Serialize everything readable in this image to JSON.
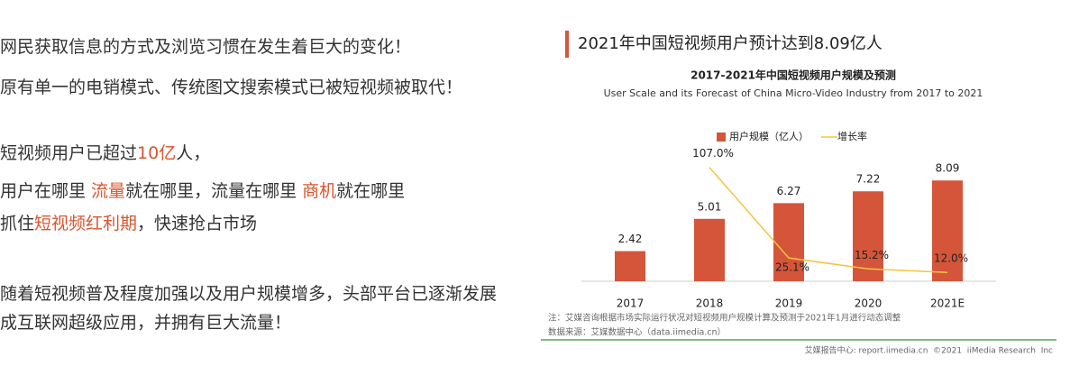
{
  "left_text": {
    "highlight_color": "#d9552f",
    "lines": [
      {
        "runs": [
          {
            "text": "网民获取信息的方式及浏览习惯在发生着巨大的变化！"
          }
        ]
      },
      {
        "runs": [
          {
            "text": "原有单一的电销模式、传统图文搜索模式已被短视频被取代！"
          }
        ]
      },
      {
        "runs": [
          {
            "text": "短视频用户已超过"
          },
          {
            "text": "10亿",
            "highlight": true
          },
          {
            "text": "人，"
          }
        ]
      },
      {
        "runs": [
          {
            "text": "用户在哪里 "
          },
          {
            "text": "流量",
            "highlight": true
          },
          {
            "text": "就在哪里，流量在哪里 "
          },
          {
            "text": "商机",
            "highlight": true
          },
          {
            "text": "就在哪里"
          }
        ]
      },
      {
        "runs": [
          {
            "text": "抓住"
          },
          {
            "text": "短视频红利期",
            "highlight": true
          },
          {
            "text": "，快速抢占市场"
          }
        ]
      },
      {
        "runs": [
          {
            "text": "随着短视频普及程度加强以及用户规模增多，头部平台已逐渐发展"
          }
        ]
      },
      {
        "runs": [
          {
            "text": "成互联网超级应用，并拥有巨大流量！"
          }
        ]
      }
    ]
  },
  "chart_data": {
    "type": "bar",
    "header": "2021年中国短视频用户预计达到8.09亿人",
    "title": "2017-2021年中国短视频用户规模及预测",
    "subtitle": "User Scale and its Forecast of China Micro-Video Industry from 2017 to 2021",
    "categories": [
      "2017",
      "2018",
      "2019",
      "2020",
      "2021E"
    ],
    "series": [
      {
        "name": "用户规模（亿人）",
        "type": "bar",
        "color": "#d4553a",
        "values": [
          2.42,
          5.01,
          6.27,
          7.22,
          8.09
        ]
      },
      {
        "name": "增长率",
        "type": "line",
        "axis": "y2",
        "color": "#f5c342",
        "values": [
          null,
          107.0,
          25.1,
          15.2,
          12.0
        ],
        "value_labels": [
          null,
          "107.0%",
          "25.1%",
          "15.2%",
          "12.0%"
        ]
      }
    ],
    "ylim": [
      0,
      11
    ],
    "y2lim": [
      4,
      128
    ],
    "note": "注：艾媒咨询根据市场实际运行状况对短视频用户规模计算及预测于2021年1月进行动态调整",
    "source": "数据来源：艾媒数据中心（data.iimedia.cn）",
    "footer": "艾媒报告中心: report.iimedia.cn  ©2021  iiMedia Research  Inc"
  }
}
